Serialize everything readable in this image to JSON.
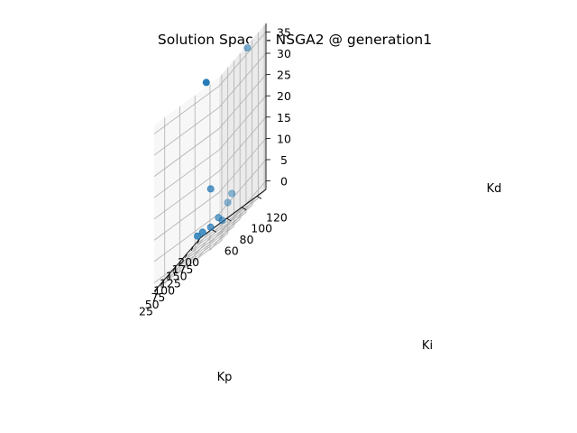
{
  "chart_data": {
    "type": "scatter",
    "projection": "3d",
    "title": "Solution Space - NSGA2 @ generation1",
    "xlabel": "Kp",
    "ylabel": "Ki",
    "zlabel": "Kd",
    "xlim": [
      14,
      207
    ],
    "ylim": [
      46,
      132
    ],
    "zlim": [
      -2,
      37
    ],
    "x_ticks": [
      25,
      50,
      75,
      100,
      125,
      150,
      175,
      200
    ],
    "y_ticks": [
      60,
      80,
      100,
      120
    ],
    "z_ticks": [
      0,
      5,
      10,
      15,
      20,
      25,
      30,
      35
    ],
    "grid": true,
    "color": "#1f77b4",
    "points": [
      {
        "Kp": 143,
        "Ki": 128,
        "Kd": 36
      },
      {
        "Kp": 62,
        "Ki": 128,
        "Kd": 5
      },
      {
        "Kp": 79,
        "Ki": 128,
        "Kd": 6
      },
      {
        "Kp": 185,
        "Ki": 60,
        "Kd": 34
      },
      {
        "Kp": 110,
        "Ki": 90,
        "Kd": 10
      },
      {
        "Kp": 105,
        "Ki": 102,
        "Kd": 2
      },
      {
        "Kp": 95,
        "Ki": 110,
        "Kd": 1
      },
      {
        "Kp": 120,
        "Ki": 76,
        "Kd": 1
      },
      {
        "Kp": 110,
        "Ki": 90,
        "Kd": 1
      },
      {
        "Kp": 118,
        "Ki": 70,
        "Kd": 1
      }
    ]
  }
}
